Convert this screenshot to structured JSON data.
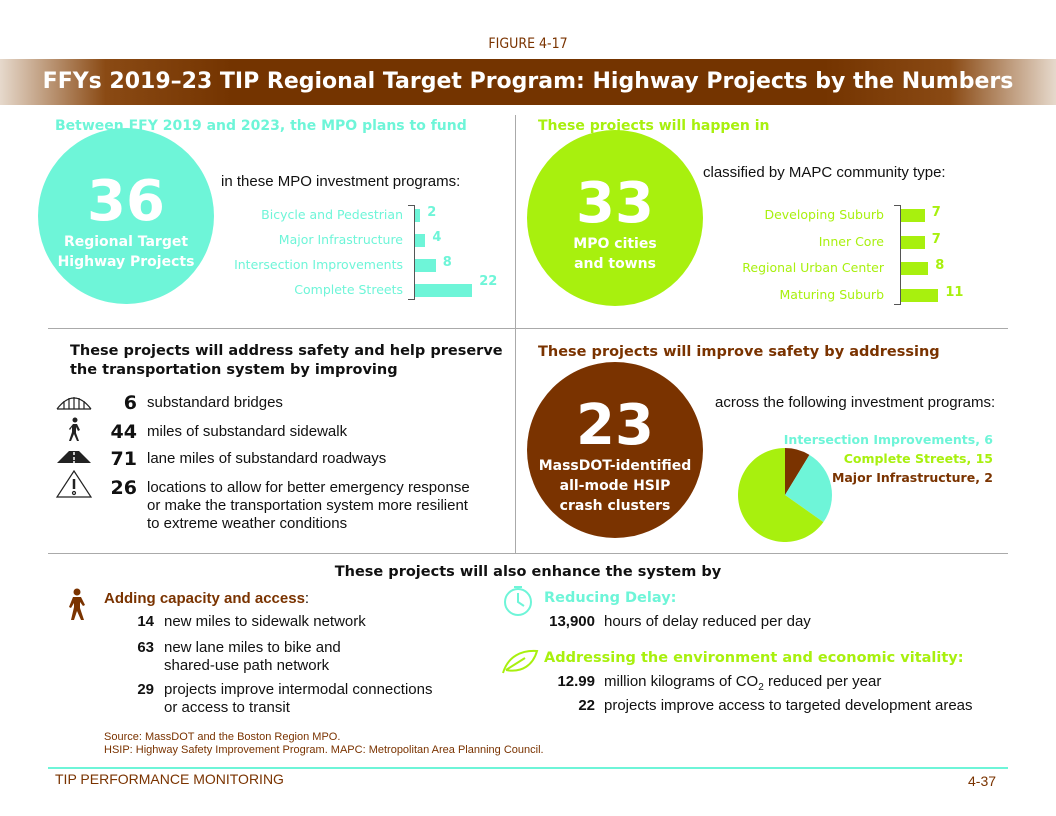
{
  "figure_label": "FIGURE 4-17",
  "title": "FFYs 2019–23 TIP Regional Target Program: Highway Projects by the Numbers",
  "colors": {
    "cyan": "#6ef5d8",
    "green": "#a8f00e",
    "brown": "#7a3300"
  },
  "q1": {
    "heading": "Between FFY 2019 and 2023, the MPO plans to fund",
    "big_number": "36",
    "big_label_1": "Regional Target",
    "big_label_2": "Highway Projects",
    "intro": "in these MPO investment programs:"
  },
  "q2": {
    "heading": "These projects will happen in",
    "big_number": "33",
    "big_label_1": "MPO cities",
    "big_label_2": "and towns",
    "intro": "classified by MAPC community type:"
  },
  "q3": {
    "heading_1": "These projects will address safety and help preserve",
    "heading_2": "the transportation system by improving",
    "items": [
      {
        "icon": "bridge-icon",
        "value": "6",
        "text": "substandard bridges"
      },
      {
        "icon": "pedestrian-icon",
        "value": "44",
        "text": "miles of substandard sidewalk"
      },
      {
        "icon": "road-icon",
        "value": "71",
        "text": "lane miles of substandard roadways"
      },
      {
        "icon": "warning-icon",
        "value": "26",
        "text": "locations to allow for better emergency response",
        "text_2": "or make the transportation system more resilient",
        "text_3": "to extreme weather conditions"
      }
    ]
  },
  "q4": {
    "heading": "These projects will improve safety by addressing",
    "big_number": "23",
    "big_label_1": "MassDOT-identified",
    "big_label_2": "all-mode HSIP",
    "big_label_3": "crash clusters",
    "intro": "across the following investment programs:"
  },
  "bottom": {
    "heading": "These projects will also enhance the system by",
    "capacity": {
      "heading": "Adding capacity and access",
      "colon": ":",
      "items": [
        {
          "value": "14",
          "text": "new miles to sidewalk network"
        },
        {
          "value": "63",
          "text": "new lane miles to bike and",
          "text_2": "shared-use path network"
        },
        {
          "value": "29",
          "text": "projects improve intermodal connections",
          "text_2": "or access to transit"
        }
      ]
    },
    "delay": {
      "heading": "Reducing Delay:",
      "value": "13,900",
      "text": "hours of delay reduced per day"
    },
    "env": {
      "heading": "Addressing the environment and economic vitality:",
      "items": [
        {
          "value": "12.99",
          "text": "million kilograms of CO",
          "sub": "2",
          "text_after": " reduced per year"
        },
        {
          "value": "22",
          "text": "projects improve access to targeted development areas"
        }
      ]
    }
  },
  "source_1": "Source: MassDOT and the Boston Region MPO.",
  "source_2": "HSIP: Highway Safety Improvement Program. MAPC: Metropolitan Area Planning Council.",
  "footer": {
    "left": "TIP PERFORMANCE MONITORING",
    "right": "4-37"
  },
  "chart_data": [
    {
      "type": "bar",
      "orientation": "horizontal",
      "categories": [
        "Bicycle and Pedestrian",
        "Major Infrastructure",
        "Intersection Improvements",
        "Complete Streets"
      ],
      "values": [
        2,
        4,
        8,
        22
      ],
      "color": "#6ef5d8"
    },
    {
      "type": "bar",
      "orientation": "horizontal",
      "categories": [
        "Developing Suburb",
        "Inner Core",
        "Regional Urban Center",
        "Maturing Suburb"
      ],
      "values": [
        7,
        7,
        8,
        11
      ],
      "color": "#a8f00e"
    },
    {
      "type": "pie",
      "labels": [
        "Major Infrastructure",
        "Intersection Improvements",
        "Complete Streets"
      ],
      "values": [
        2,
        6,
        15
      ],
      "colors": [
        "#7a3300",
        "#6ef5d8",
        "#a8f00e"
      ],
      "legend": [
        "Intersection Improvements, 6",
        "Complete Streets, 15",
        "Major Infrastructure, 2"
      ]
    }
  ]
}
